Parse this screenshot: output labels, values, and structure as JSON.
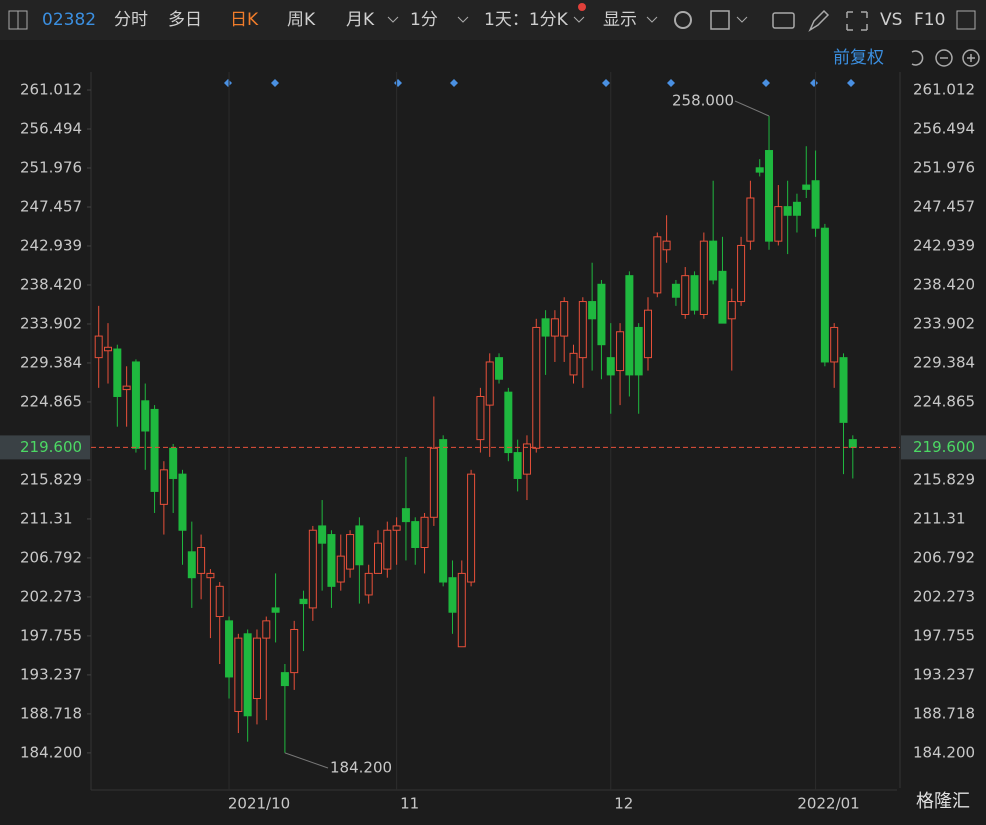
{
  "toolbar": {
    "code": "02382",
    "tabs": [
      "分时",
      "多日",
      "日K",
      "周K",
      "月K",
      "1分",
      "1天：1分K",
      "显示",
      "VS",
      "F10"
    ],
    "adjust": "前复权"
  },
  "watermark": "格隆汇",
  "chart_data": {
    "type": "candlestick",
    "categories": [
      null,
      null,
      null,
      null,
      null,
      null,
      null,
      null,
      null,
      null,
      null,
      null,
      null,
      null,
      "2021/10",
      null,
      null,
      null,
      null,
      null,
      null,
      null,
      null,
      null,
      null,
      null,
      null,
      null,
      null,
      null,
      null,
      null,
      "11",
      null,
      null,
      null,
      null,
      null,
      null,
      null,
      null,
      null,
      null,
      null,
      null,
      null,
      null,
      null,
      null,
      null,
      null,
      null,
      null,
      null,
      null,
      "12",
      null,
      null,
      null,
      null,
      null,
      null,
      null,
      null,
      null,
      null,
      null,
      null,
      null,
      null,
      null,
      null,
      null,
      null,
      null,
      null,
      null,
      "2022/01",
      null,
      null,
      null,
      null
    ],
    "open": [
      230,
      230.8,
      231,
      226.3,
      229.5,
      225,
      224,
      213,
      219.5,
      216.5,
      207.5,
      205,
      204.5,
      200,
      199.5,
      189,
      198,
      190.5,
      197.5,
      201,
      193.5,
      193.5,
      202,
      201,
      210.5,
      209.5,
      204,
      205.5,
      210.5,
      202.5,
      205,
      205.5,
      210,
      212.5,
      211,
      208,
      211.5,
      220.5,
      204.5,
      196.5,
      204,
      220.5,
      224.5,
      230,
      226,
      219,
      216.5,
      219.5,
      234.5,
      232.5,
      232.5,
      228,
      230,
      236.5,
      238.5,
      230,
      228.5,
      239.5,
      233.5,
      230,
      237.5,
      242.5,
      238.5,
      235,
      239.5,
      235,
      243.5,
      240,
      234.5,
      236.5,
      243.5,
      252,
      254,
      243.5,
      247.5,
      248,
      250,
      250.5,
      245,
      229.5,
      230,
      220.5
    ],
    "high": [
      236,
      234,
      231.5,
      229,
      229.8,
      227,
      224.5,
      218,
      220,
      217,
      211,
      209.5,
      205.5,
      204,
      200,
      198,
      198.5,
      198.5,
      200,
      205,
      194.5,
      199.5,
      203,
      210.5,
      213.5,
      210,
      209.5,
      210,
      211.5,
      206,
      210,
      211,
      211.5,
      218.5,
      211.5,
      212,
      225.5,
      221,
      206.5,
      206.5,
      217,
      226.5,
      230.5,
      230.5,
      226.5,
      220.5,
      221,
      234.5,
      235.5,
      235.5,
      237,
      231.5,
      237,
      241,
      239,
      234,
      234,
      240,
      234,
      237,
      244.5,
      246.5,
      239,
      240.5,
      240,
      244.5,
      250.5,
      244,
      238,
      244,
      250.5,
      253,
      258,
      250,
      250.5,
      249,
      254.5,
      254,
      245.5,
      234,
      230.5,
      221
    ],
    "low": [
      226.5,
      227,
      222,
      222,
      219,
      217,
      212,
      209.5,
      212,
      206,
      201,
      202,
      197.5,
      194.5,
      190.5,
      186.5,
      185.5,
      187.5,
      188,
      197,
      184.2,
      191.5,
      196,
      199.5,
      203,
      201,
      203,
      204.5,
      201.5,
      201.5,
      205,
      204.5,
      206,
      206.5,
      206,
      205,
      210.5,
      203.5,
      198,
      196.5,
      203.5,
      219,
      218.5,
      227,
      218,
      214.5,
      213.5,
      219,
      228,
      229.5,
      229.5,
      227,
      226.5,
      228.5,
      227.5,
      223.5,
      224.5,
      225.5,
      223.5,
      228.5,
      237,
      241,
      236,
      234.5,
      235,
      234.5,
      238.5,
      234,
      228.5,
      236,
      242.5,
      251,
      242.5,
      243,
      242,
      244.5,
      248.5,
      244,
      229,
      226.5,
      216.5,
      216
    ],
    "close": [
      232.5,
      231.2,
      225.5,
      226.7,
      219.5,
      221.5,
      214.5,
      217,
      216,
      210,
      204.5,
      208,
      205,
      203.5,
      193,
      197.5,
      188.5,
      197.5,
      199.5,
      200.5,
      192,
      198.5,
      201.5,
      210,
      208.5,
      203.5,
      207,
      209.5,
      206,
      205,
      208.5,
      210,
      210.5,
      211,
      208,
      211.5,
      219.5,
      204,
      200.5,
      205,
      216.5,
      225.5,
      229.5,
      227.5,
      219,
      216,
      220,
      233.5,
      232.5,
      234.5,
      236.5,
      230.5,
      236.5,
      234.5,
      231.5,
      228,
      233,
      228,
      228,
      235.5,
      244,
      243.5,
      237,
      239.5,
      235.5,
      243.5,
      239,
      234,
      236.5,
      243,
      248.5,
      251.5,
      243.5,
      247.5,
      246.5,
      246.5,
      249.5,
      245,
      229.5,
      233.5,
      222.5,
      219.6
    ],
    "up_color": "#e8503a",
    "down_color": "#1fb83f",
    "ylim": [
      179.9,
      263.1
    ],
    "yticks": [
      261.012,
      256.494,
      251.976,
      247.457,
      242.939,
      {
        "value": 238.42,
        "label": "238.420"
      },
      233.902,
      229.384,
      224.865,
      215.829,
      211.31,
      206.792,
      202.273,
      197.755,
      193.237,
      188.718,
      {
        "value": 184.2,
        "label": "184.200"
      }
    ],
    "current_price": {
      "value": 219.6,
      "label": "219.600"
    },
    "high_label": {
      "value": 258,
      "label": "258.000"
    },
    "low_label": {
      "value": 184.2,
      "label": "184.200"
    }
  }
}
